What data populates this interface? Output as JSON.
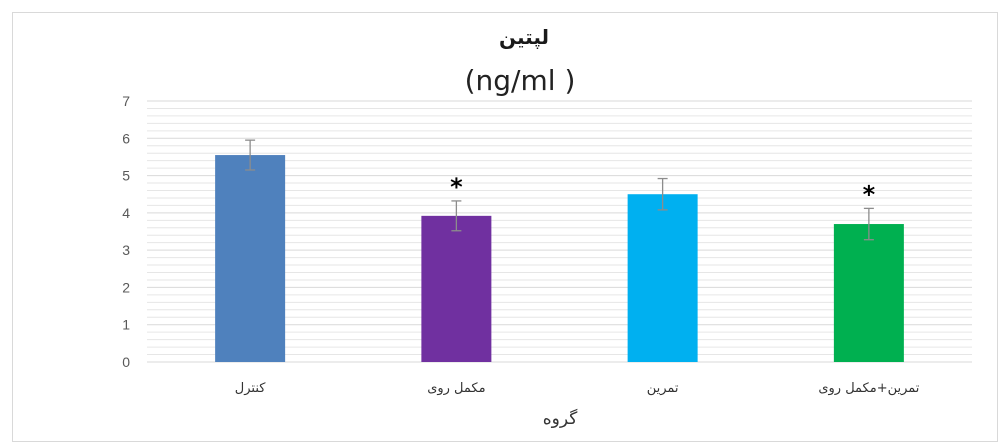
{
  "chart_data": {
    "type": "bar",
    "title": "لپتین",
    "subtitle": "(ng/ml )",
    "xlabel": "گروه",
    "ylabel": "",
    "ylim": [
      0,
      7
    ],
    "yticks": [
      "0",
      "1",
      "2",
      "3",
      "4",
      "5",
      "6",
      "7"
    ],
    "grid": true,
    "categories": [
      "کنترل",
      "مکمل روی",
      "تمرین",
      "تمرین+مکمل روی"
    ],
    "values": [
      5.55,
      3.92,
      4.5,
      3.7
    ],
    "errors": [
      0.4,
      0.4,
      0.42,
      0.42
    ],
    "significance": [
      "",
      "*",
      "",
      "*"
    ],
    "colors": [
      "#4f81bd",
      "#7030a0",
      "#00b0f0",
      "#00b050"
    ],
    "error_color": "#8c8c8c",
    "grid_color": "#e6e6e6"
  }
}
